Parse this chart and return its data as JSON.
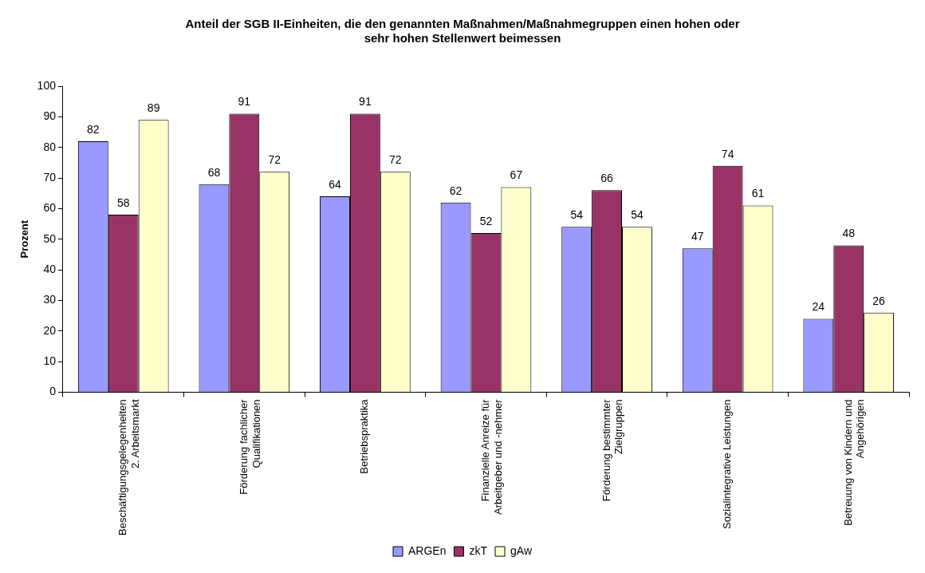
{
  "chart_data": {
    "type": "bar",
    "title": "Anteil der SGB II-Einheiten, die den genannten Maßnahmen/Maßnahmegruppen einen hohen oder sehr hohen Stellenwert beimessen",
    "ylabel": "Prozent",
    "categories": [
      "Beschäftigungsgelegenheiten 2. Arbeitsmarkt",
      "Förderung fachlicher Qualifikationen",
      "Betriebspraktika",
      "Finanzielle Anreize für Arbeitgeber und -nehmer",
      "Förderung bestimmter Zielgruppen",
      "Sozialintegrative Leistungen",
      "Betreuung von Kindern und Angehörigen"
    ],
    "series": [
      {
        "name": "ARGEn",
        "color": "#9999ff",
        "values": [
          82,
          68,
          64,
          62,
          54,
          47,
          24
        ]
      },
      {
        "name": "zkT",
        "color": "#993366",
        "values": [
          58,
          91,
          91,
          52,
          66,
          74,
          48
        ]
      },
      {
        "name": "gAw",
        "color": "#ffffcc",
        "values": [
          89,
          72,
          72,
          67,
          54,
          61,
          26
        ]
      }
    ],
    "ylim": [
      0,
      100
    ],
    "yticks": [
      0,
      10,
      20,
      30,
      40,
      50,
      60,
      70,
      80,
      90,
      100
    ],
    "data_labels": true,
    "legend": "bottom"
  }
}
